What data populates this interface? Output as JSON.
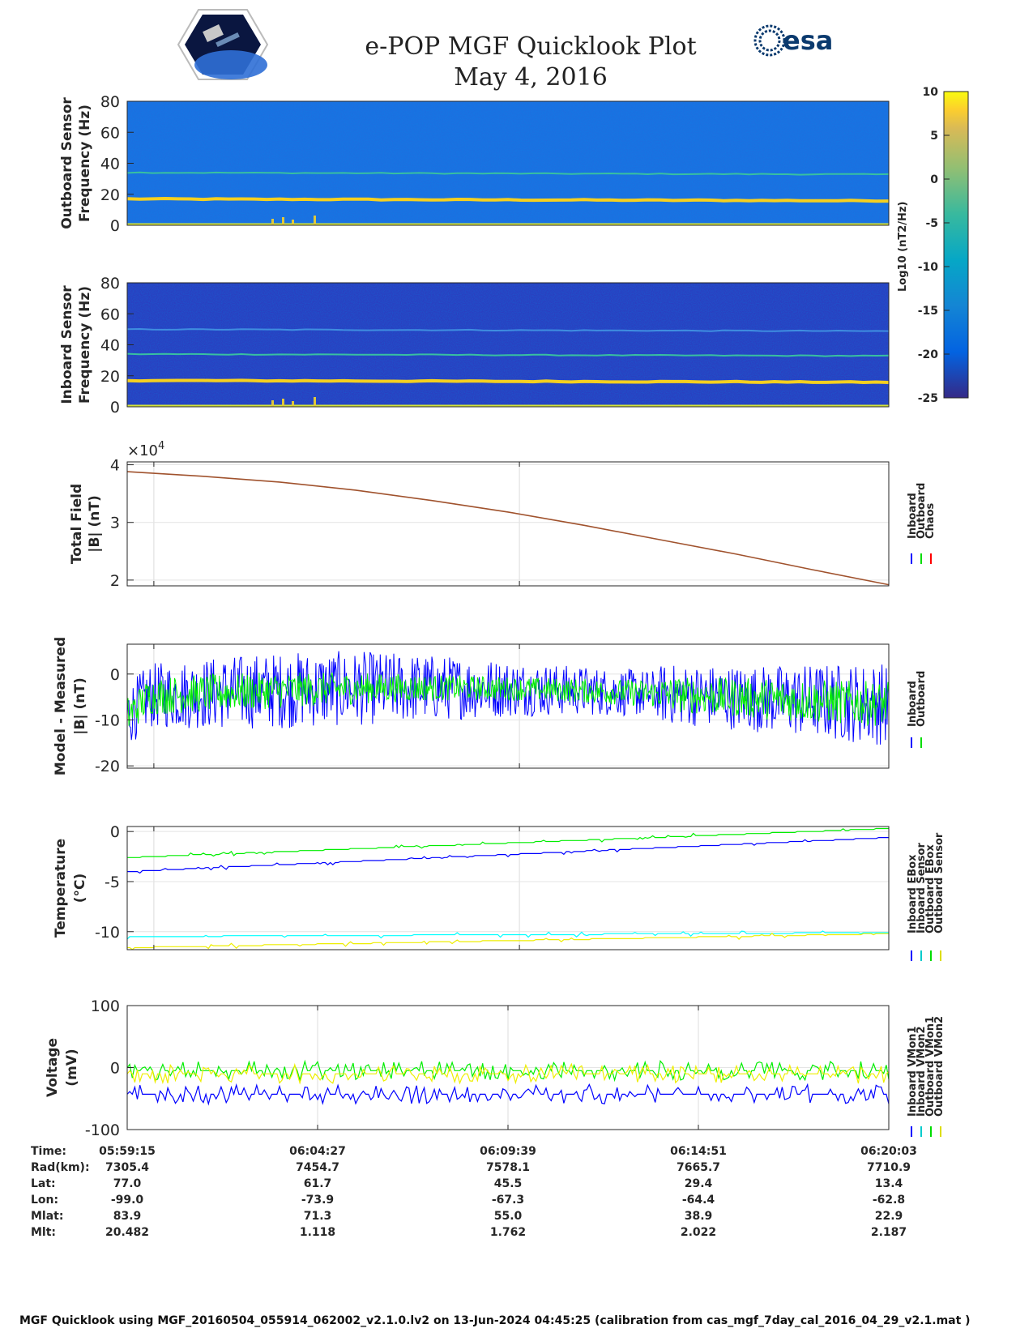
{
  "header": {
    "title": "e-POP MGF Quicklook Plot",
    "date": "May 4, 2016",
    "left_logo": "cassiope-mission-logo",
    "right_logo_text": "esa"
  },
  "colorbar": {
    "label": "Log10 (nT2/Hz)",
    "ticks": [
      "10",
      "5",
      "0",
      "-5",
      "-10",
      "-15",
      "-20",
      "-25"
    ],
    "range": [
      -25,
      10
    ],
    "colormap": "parula"
  },
  "chart_data": [
    {
      "type": "heatmap",
      "ylabel": [
        "Outboard Sensor",
        "Frequency (Hz)"
      ],
      "yticks": [
        "80",
        "60",
        "40",
        "20",
        "0"
      ],
      "ylim": [
        0,
        80
      ],
      "features": [
        {
          "frequency_hz": 17,
          "level": "high"
        },
        {
          "frequency_hz": 34,
          "level": "medium"
        }
      ]
    },
    {
      "type": "heatmap",
      "ylabel": [
        "Inboard Sensor",
        "Frequency (Hz)"
      ],
      "yticks": [
        "80",
        "60",
        "40",
        "20",
        "0"
      ],
      "ylim": [
        0,
        80
      ],
      "features": [
        {
          "frequency_hz": 17,
          "level": "high"
        },
        {
          "frequency_hz": 34,
          "level": "medium"
        },
        {
          "frequency_hz": 50,
          "level": "low"
        }
      ]
    },
    {
      "type": "line",
      "ylabel": [
        "Total Field",
        "|B| (nT)"
      ],
      "exponent_label": "×10",
      "exponent_power": "4",
      "yticks": [
        "4",
        "3",
        "2"
      ],
      "ylim": [
        1.9,
        4.05
      ],
      "legend": [
        "Inboard",
        "Outboard",
        "Chaos"
      ],
      "legend_colors": [
        "#0000ff",
        "#00dd00",
        "#ff0000"
      ],
      "series": [
        {
          "name": "Chaos",
          "color": "#a0522d",
          "x": [
            0,
            0.1,
            0.2,
            0.3,
            0.4,
            0.5,
            0.6,
            0.7,
            0.8,
            0.9,
            1.0
          ],
          "values": [
            3.88,
            3.8,
            3.7,
            3.56,
            3.38,
            3.18,
            2.95,
            2.7,
            2.45,
            2.18,
            1.92
          ]
        }
      ]
    },
    {
      "type": "line",
      "ylabel": [
        "Model - Measured",
        "|B| (nT)"
      ],
      "yticks": [
        "0",
        "-10",
        "-20"
      ],
      "ylim": [
        -20.5,
        6.5
      ],
      "legend": [
        "Inboard",
        "Outboard"
      ],
      "legend_colors": [
        "#0000ff",
        "#00dd00"
      ],
      "series": [
        {
          "name": "Inboard",
          "color": "#0000ff",
          "center": -5,
          "amplitude": 9
        },
        {
          "name": "Outboard",
          "color": "#00ee00",
          "center": -5,
          "amplitude": 4.5
        }
      ]
    },
    {
      "type": "line",
      "ylabel": [
        "Temperature",
        "(°C)"
      ],
      "yticks": [
        "0",
        "-5",
        "-10"
      ],
      "ylim": [
        -11.8,
        0.5
      ],
      "legend": [
        "Inboard EBox",
        "Inboard Sensor",
        "Outboard EBox",
        "Outboard Sensor"
      ],
      "legend_colors": [
        "#0000ff",
        "#00cccc",
        "#00dd00",
        "#dddd00"
      ],
      "series": [
        {
          "name": "Inboard EBox",
          "color": "#0000ff",
          "x": [
            0,
            1
          ],
          "values": [
            -4.0,
            -0.6
          ]
        },
        {
          "name": "Inboard Sensor",
          "color": "#00ffff",
          "x": [
            0,
            1
          ],
          "values": [
            -10.5,
            -10.1
          ]
        },
        {
          "name": "Outboard EBox",
          "color": "#00ee00",
          "x": [
            0,
            1
          ],
          "values": [
            -2.6,
            0.3
          ]
        },
        {
          "name": "Outboard Sensor",
          "color": "#eeee00",
          "x": [
            0,
            1
          ],
          "values": [
            -11.6,
            -10.2
          ]
        }
      ]
    },
    {
      "type": "line",
      "ylabel": [
        "Voltage",
        "(mV)"
      ],
      "yticks": [
        "100",
        "0",
        "-100"
      ],
      "ylim": [
        -100,
        100
      ],
      "legend": [
        "Inboard VMon1",
        "Inboard VMon2",
        "Outboard VMon1",
        "Outboard VMon2"
      ],
      "legend_colors": [
        "#0000ff",
        "#00cccc",
        "#00dd00",
        "#dddd00"
      ],
      "series": [
        {
          "name": "Inboard VMon1",
          "color": "#0000ff",
          "x": [
            0,
            1
          ],
          "values": [
            -43,
            -43
          ]
        },
        {
          "name": "Outboard VMon1",
          "color": "#00ee00",
          "x": [
            0,
            1
          ],
          "values": [
            -5,
            -5
          ]
        },
        {
          "name": "Outboard VMon2",
          "color": "#eeee00",
          "x": [
            0,
            1
          ],
          "values": [
            -10,
            -10
          ]
        }
      ]
    }
  ],
  "ephemeris": {
    "labels": [
      "Time:",
      "Rad(km):",
      "Lat:",
      "Lon:",
      "Mlat:",
      "Mlt:"
    ],
    "columns": [
      [
        "05:59:15",
        "7305.4",
        "77.0",
        "-99.0",
        "83.9",
        "20.482"
      ],
      [
        "06:04:27",
        "7454.7",
        "61.7",
        "-73.9",
        "71.3",
        "1.118"
      ],
      [
        "06:09:39",
        "7578.1",
        "45.5",
        "-67.3",
        "55.0",
        "1.762"
      ],
      [
        "06:14:51",
        "7665.7",
        "29.4",
        "-64.4",
        "38.9",
        "2.022"
      ],
      [
        "06:20:03",
        "7710.9",
        "13.4",
        "-62.8",
        "22.9",
        "2.187"
      ]
    ]
  },
  "footer": "MGF Quicklook using MGF_20160504_055914_062002_v2.1.0.lv2 on 13-Jun-2024 04:45:25 (calibration from cas_mgf_7day_cal_2016_04_29_v2.1.mat )"
}
